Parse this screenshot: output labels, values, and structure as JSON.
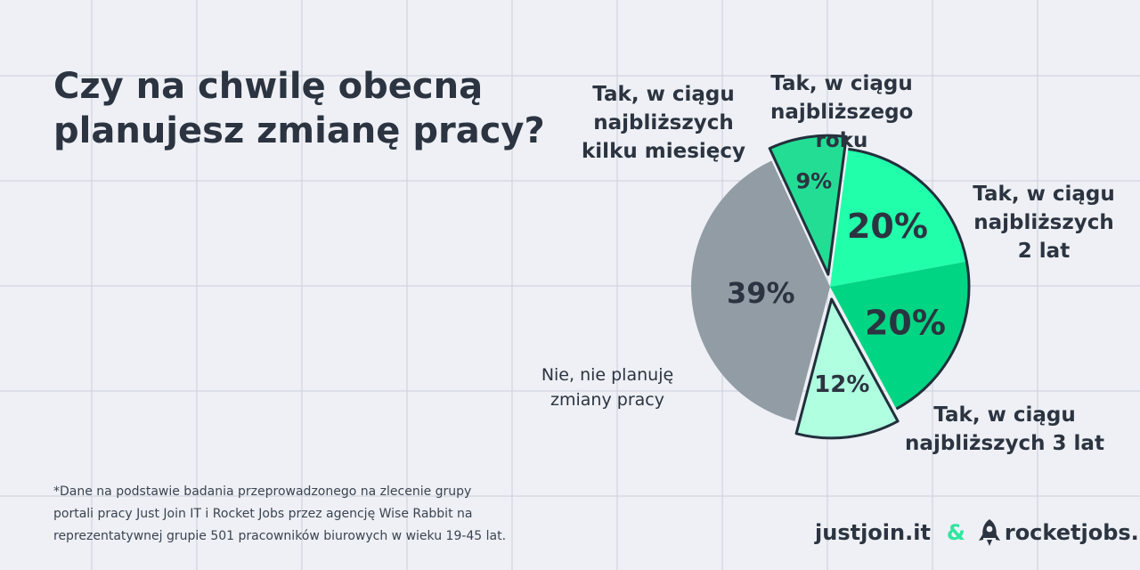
{
  "title": "Czy na chwilę obecną\nplanujesz zmianę pracy?",
  "chart_data": {
    "type": "pie",
    "slices": [
      {
        "label": "Tak, w ciągu\nnajbliższego roku",
        "value": 20,
        "display": "20%",
        "color": "#22ffab"
      },
      {
        "label": "Tak, w ciągu\nnajbliższych\n2 lat",
        "value": 20,
        "display": "20%",
        "color": "#00d583"
      },
      {
        "label": "Tak, w ciągu\nnajbliższych 3 lat",
        "value": 12,
        "display": "12%",
        "color": "#b0ffe0",
        "exploded": true
      },
      {
        "label": "Nie, nie planuję\nzmiany pracy",
        "value": 39,
        "display": "39%",
        "color": "#929ca5"
      },
      {
        "label": "Tak, w ciągu\nnajbliższych\nkilku miesięcy",
        "value": 9,
        "display": "9%",
        "color": "#24dd95",
        "exploded": true
      }
    ],
    "outline_color": "#22303c"
  },
  "footnote": "*Dane na podstawie badania przeprowadzonego na zlecenie grupy\nportali pracy Just Join IT i Rocket Jobs przez agencję Wise Rabbit na\nreprezentatywnej grupie 501 pracowników biurowych w wieku 19-45 lat.",
  "logos": {
    "justjoin": "justjoin.it",
    "ampersand": "&",
    "rocketjobs": "rocketjobs.pl",
    "rocket_icon": "rocket-icon"
  }
}
